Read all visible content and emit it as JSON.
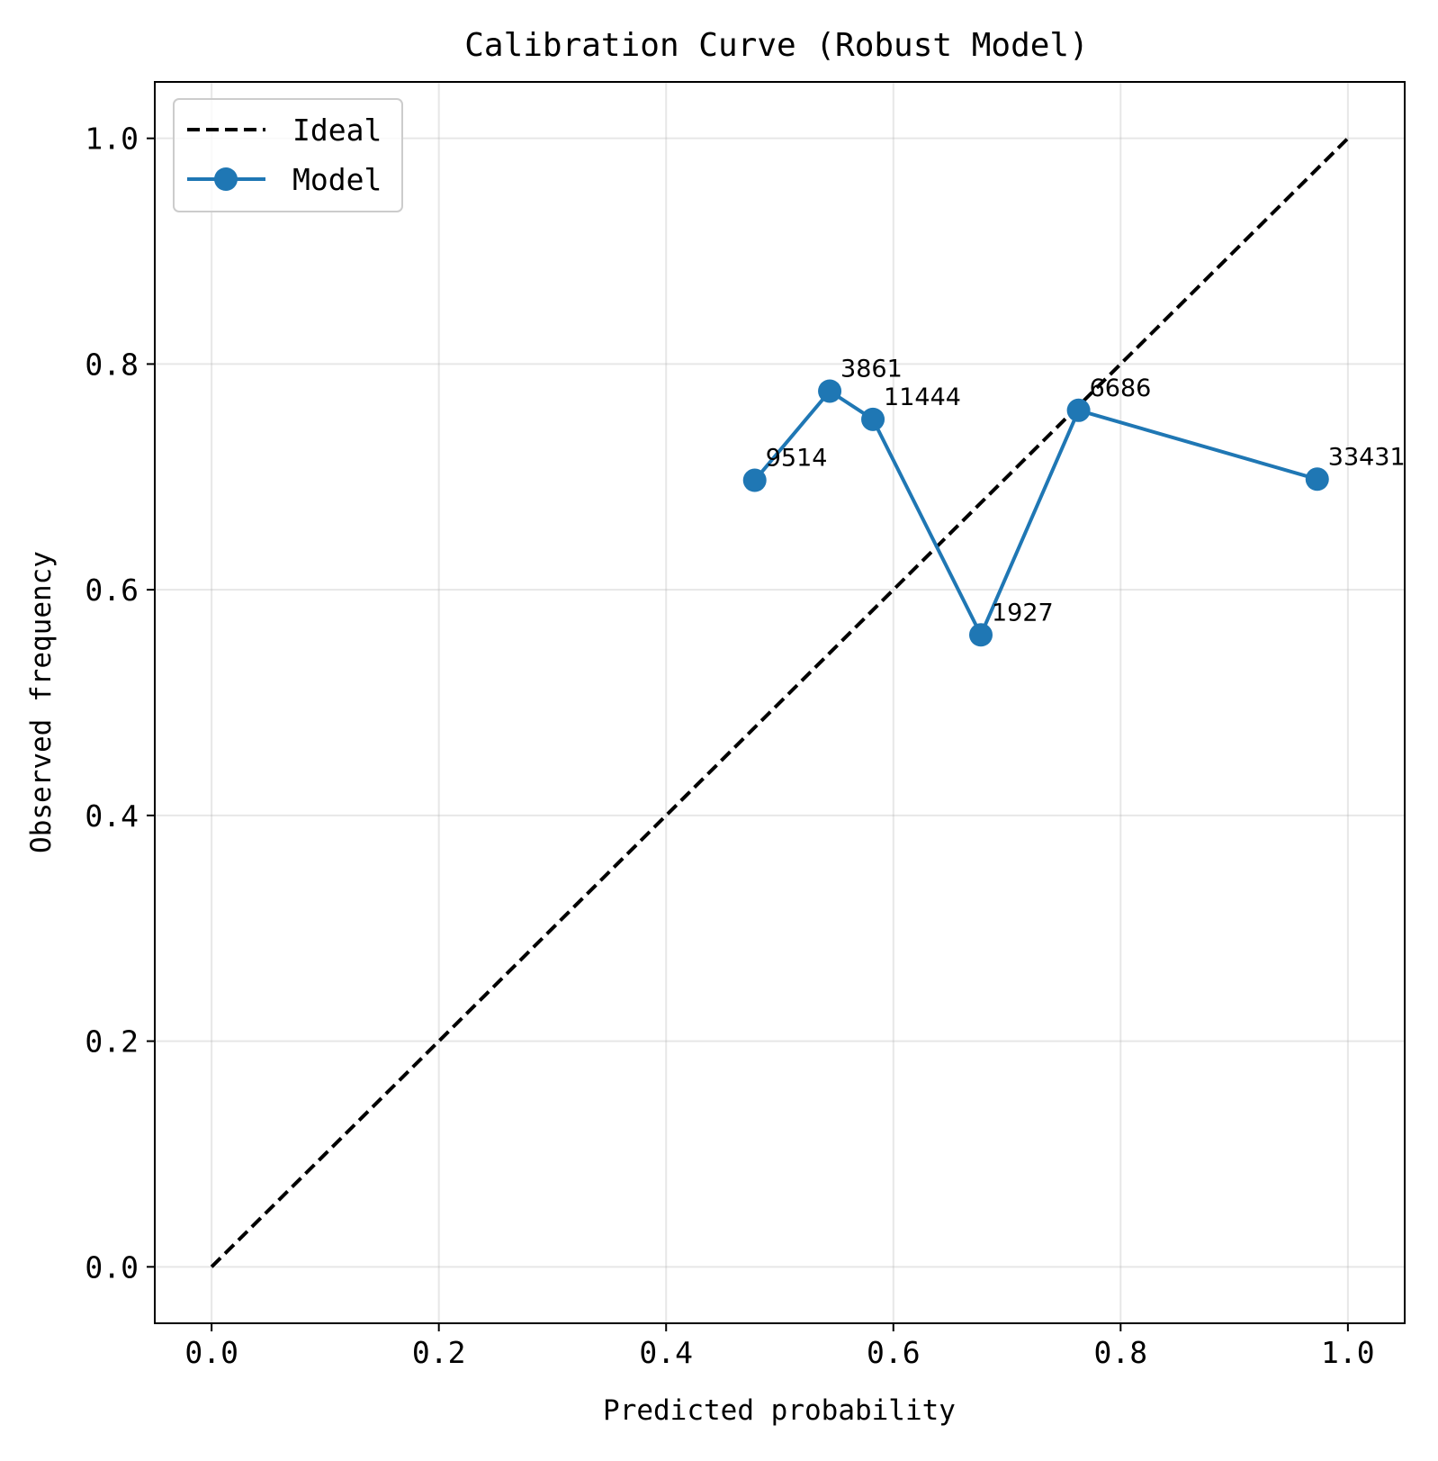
{
  "chart_data": {
    "type": "line",
    "title": "Calibration Curve (Robust Model)",
    "xlabel": "Predicted probability",
    "ylabel": "Observed frequency",
    "xlim": [
      -0.05,
      1.05
    ],
    "ylim": [
      -0.05,
      1.05
    ],
    "xticks": [
      "0.0",
      "0.2",
      "0.4",
      "0.6",
      "0.8",
      "1.0"
    ],
    "yticks": [
      "0.0",
      "0.2",
      "0.4",
      "0.6",
      "0.8",
      "1.0"
    ],
    "grid": true,
    "legend_position": "upper-left",
    "series": [
      {
        "name": "Ideal",
        "style": "dashed",
        "color": "#000000",
        "x": [
          0.0,
          1.0
        ],
        "y": [
          0.0,
          1.0
        ]
      },
      {
        "name": "Model",
        "style": "solid-markers",
        "color": "#1f77b4",
        "x": [
          0.478,
          0.544,
          0.582,
          0.677,
          0.763,
          0.973
        ],
        "y": [
          0.697,
          0.776,
          0.751,
          0.56,
          0.759,
          0.698
        ],
        "point_labels": [
          "9514",
          "3861",
          "11444",
          "1927",
          "6686",
          "33431"
        ]
      }
    ]
  }
}
